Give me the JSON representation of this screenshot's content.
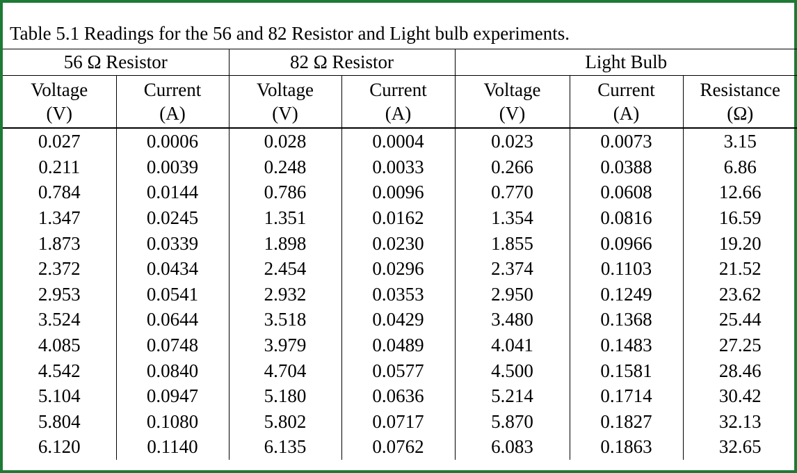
{
  "caption": "Table 5.1 Readings for the 56 and 82 Resistor and Light bulb experiments.",
  "groups": [
    "56 Ω Resistor",
    "82 Ω Resistor",
    "Light Bulb"
  ],
  "columns": [
    {
      "name": "Voltage",
      "unit": "(V)"
    },
    {
      "name": "Current",
      "unit": "(A)"
    },
    {
      "name": "Voltage",
      "unit": "(V)"
    },
    {
      "name": "Current",
      "unit": "(A)"
    },
    {
      "name": "Voltage",
      "unit": "(V)"
    },
    {
      "name": "Current",
      "unit": "(A)"
    },
    {
      "name": "Resistance",
      "unit": "(Ω)"
    }
  ],
  "rows": [
    [
      "0.027",
      "0.0006",
      "0.028",
      "0.0004",
      "0.023",
      "0.0073",
      "3.15"
    ],
    [
      "0.211",
      "0.0039",
      "0.248",
      "0.0033",
      "0.266",
      "0.0388",
      "6.86"
    ],
    [
      "0.784",
      "0.0144",
      "0.786",
      "0.0096",
      "0.770",
      "0.0608",
      "12.66"
    ],
    [
      "1.347",
      "0.0245",
      "1.351",
      "0.0162",
      "1.354",
      "0.0816",
      "16.59"
    ],
    [
      "1.873",
      "0.0339",
      "1.898",
      "0.0230",
      "1.855",
      "0.0966",
      "19.20"
    ],
    [
      "2.372",
      "0.0434",
      "2.454",
      "0.0296",
      "2.374",
      "0.1103",
      "21.52"
    ],
    [
      "2.953",
      "0.0541",
      "2.932",
      "0.0353",
      "2.950",
      "0.1249",
      "23.62"
    ],
    [
      "3.524",
      "0.0644",
      "3.518",
      "0.0429",
      "3.480",
      "0.1368",
      "25.44"
    ],
    [
      "4.085",
      "0.0748",
      "3.979",
      "0.0489",
      "4.041",
      "0.1483",
      "27.25"
    ],
    [
      "4.542",
      "0.0840",
      "4.704",
      "0.0577",
      "4.500",
      "0.1581",
      "28.46"
    ],
    [
      "5.104",
      "0.0947",
      "5.180",
      "0.0636",
      "5.214",
      "0.1714",
      "30.42"
    ],
    [
      "5.804",
      "0.1080",
      "5.802",
      "0.0717",
      "5.870",
      "0.1827",
      "32.13"
    ],
    [
      "6.120",
      "0.1140",
      "6.135",
      "0.0762",
      "6.083",
      "0.1863",
      "32.65"
    ]
  ],
  "colors": {
    "frame_border": "#1e7a34",
    "background": "#ffffff",
    "text": "#000000"
  }
}
